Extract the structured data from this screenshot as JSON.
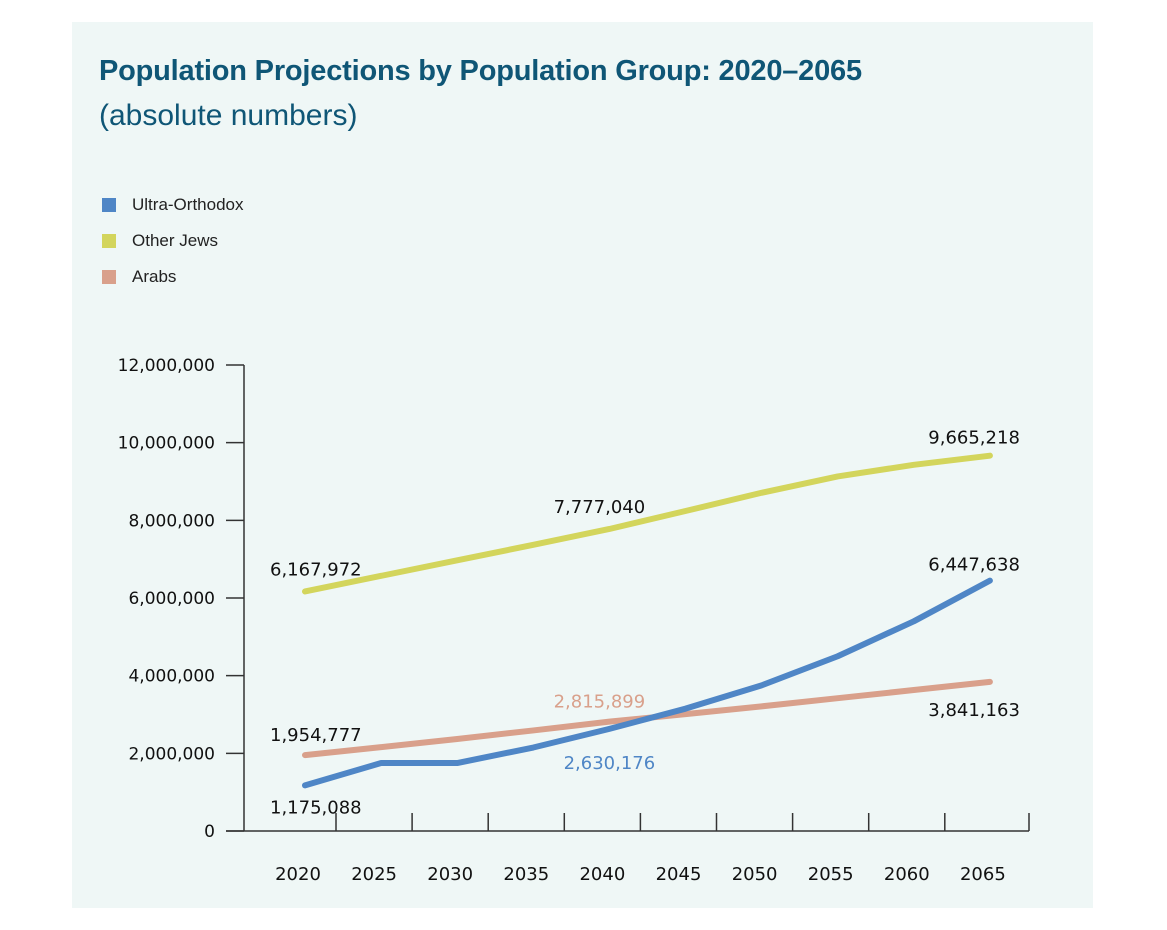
{
  "chart_data": {
    "type": "line",
    "title": "Population Projections by Population Group: 2020–2065",
    "subtitle": "(absolute numbers)",
    "xlabel": "",
    "ylabel": "",
    "categories": [
      "2020",
      "2025",
      "2030",
      "2035",
      "2040",
      "2045",
      "2050",
      "2055",
      "2060",
      "2065"
    ],
    "ylim": [
      0,
      12000000
    ],
    "yticks": [
      "0",
      "2,000,000",
      "4,000,000",
      "6,000,000",
      "8,000,000",
      "10,000,000",
      "12,000,000"
    ],
    "grid": false,
    "legend_position": "top-left",
    "series": [
      {
        "name": "Ultra-Orthodox",
        "color": "#4f86c6",
        "values": [
          1175088,
          1750000,
          1750000,
          2150000,
          2630176,
          3150000,
          3750000,
          4500000,
          5400000,
          6447638
        ]
      },
      {
        "name": "Other Jews",
        "color": "#d3d55c",
        "values": [
          6167972,
          6570000,
          6970000,
          7370000,
          7777040,
          8240000,
          8710000,
          9130000,
          9430000,
          9665218
        ]
      },
      {
        "name": "Arabs",
        "color": "#d9a08b",
        "values": [
          1954777,
          2160000,
          2370000,
          2590000,
          2815899,
          3010000,
          3210000,
          3420000,
          3630000,
          3841163
        ]
      }
    ],
    "data_labels": [
      {
        "text": "1,175,088",
        "series": 0,
        "index": 0,
        "color": "#111111"
      },
      {
        "text": "2,630,176",
        "series": 0,
        "index": 4,
        "color": "#4f86c6"
      },
      {
        "text": "6,447,638",
        "series": 0,
        "index": 9,
        "color": "#111111"
      },
      {
        "text": "6,167,972",
        "series": 1,
        "index": 0,
        "color": "#111111"
      },
      {
        "text": "7,777,040",
        "series": 1,
        "index": 4,
        "color": "#111111"
      },
      {
        "text": "9,665,218",
        "series": 1,
        "index": 9,
        "color": "#111111"
      },
      {
        "text": "1,954,777",
        "series": 2,
        "index": 0,
        "color": "#111111"
      },
      {
        "text": "2,815,899",
        "series": 2,
        "index": 4,
        "color": "#d9a08b"
      },
      {
        "text": "3,841,163",
        "series": 2,
        "index": 9,
        "color": "#111111"
      }
    ]
  }
}
